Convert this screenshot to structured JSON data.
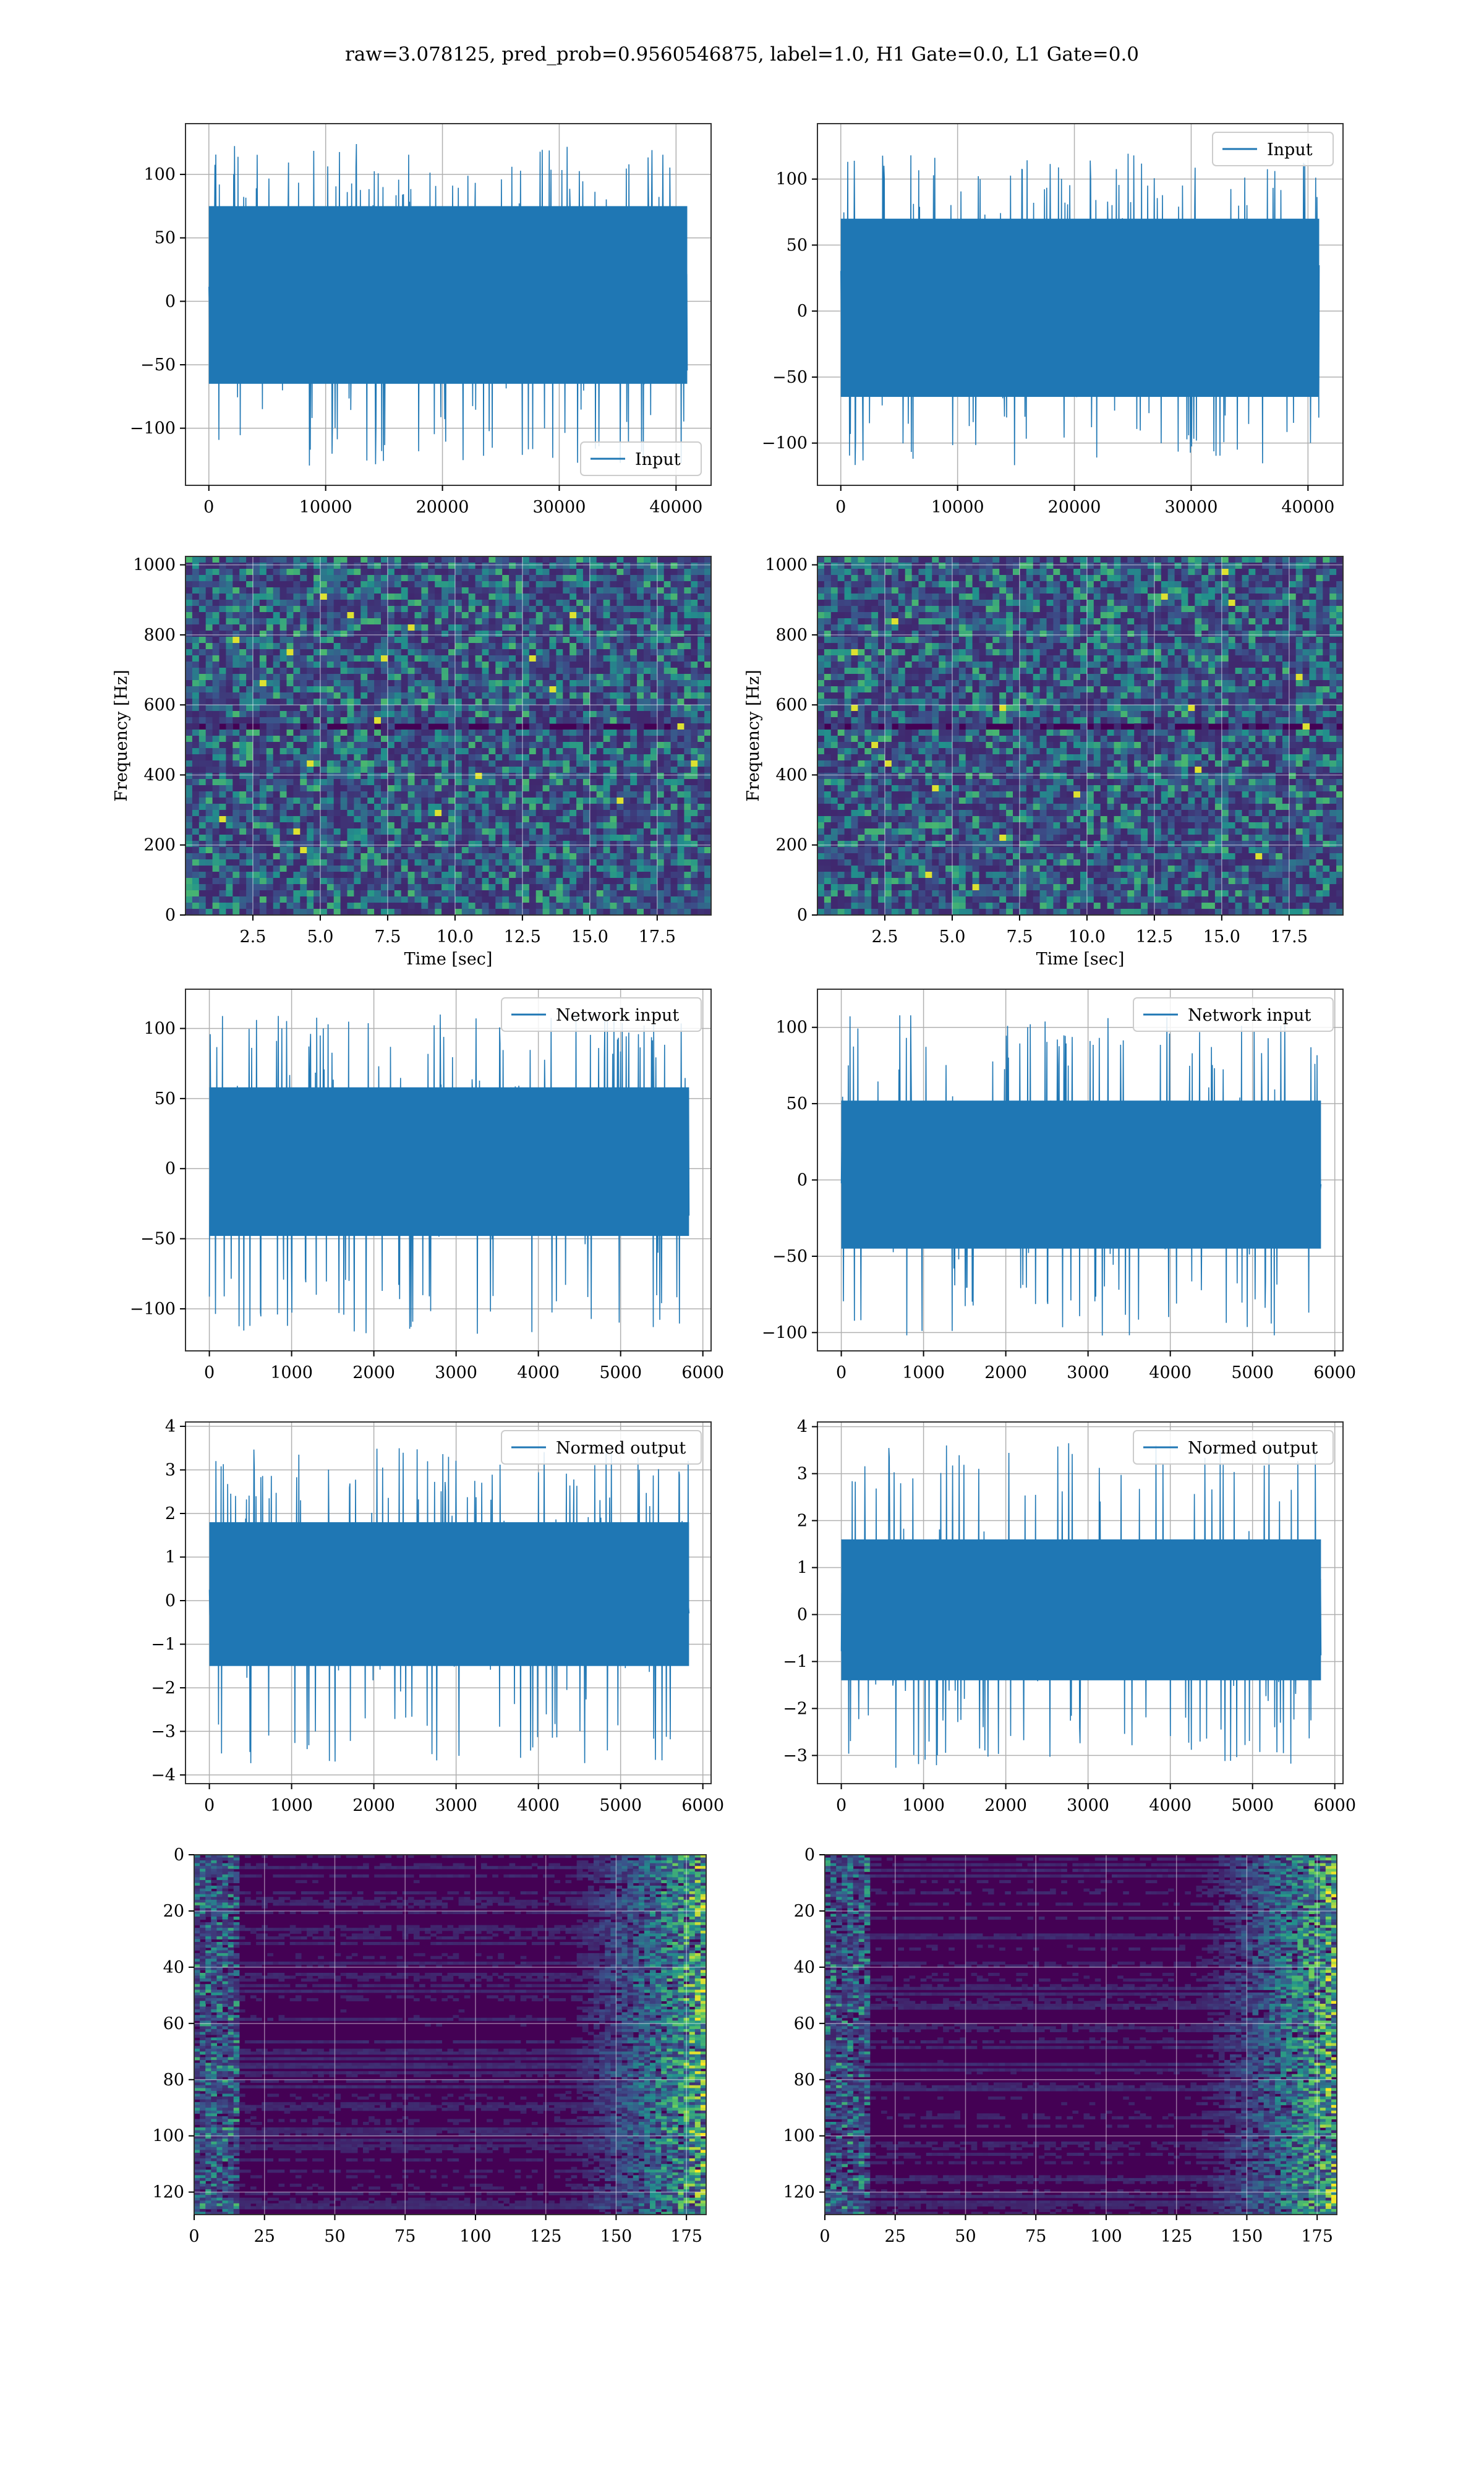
{
  "figure": {
    "suptitle": "raw=3.078125, pred_prob=0.9560546875, label=1.0, H1 Gate=0.0, L1 Gate=0.0",
    "colors": {
      "line": "#1f77b4",
      "grid": "#b0b0b0",
      "viridis_dark": "#440154"
    }
  },
  "chart_data": [
    {
      "id": "r0c0",
      "type": "line",
      "legend": [
        "Input"
      ],
      "legend_loc": "lower-right",
      "xlim": [
        -2000,
        43000
      ],
      "ylim": [
        -145,
        140
      ],
      "x_ticks": [
        0,
        10000,
        20000,
        30000,
        40000
      ],
      "x_tick_labels": [
        "0",
        "10000",
        "20000",
        "30000",
        "40000"
      ],
      "y_ticks": [
        -100,
        -50,
        0,
        50,
        100
      ],
      "y_tick_labels": [
        "−100",
        "−50",
        "0",
        "50",
        "100"
      ],
      "grid": true,
      "xlabel": "",
      "ylabel": "",
      "signal": {
        "n": 40960,
        "x_start": 0,
        "x_end": 40960,
        "envelope_min": -130,
        "envelope_max": 125,
        "body_min": -65,
        "body_max": 75
      }
    },
    {
      "id": "r0c1",
      "type": "line",
      "legend": [
        "Input"
      ],
      "legend_loc": "upper-right",
      "xlim": [
        -2000,
        43000
      ],
      "ylim": [
        -132,
        142
      ],
      "x_ticks": [
        0,
        10000,
        20000,
        30000,
        40000
      ],
      "x_tick_labels": [
        "0",
        "10000",
        "20000",
        "30000",
        "40000"
      ],
      "y_ticks": [
        -100,
        -50,
        0,
        50,
        100
      ],
      "y_tick_labels": [
        "−100",
        "−50",
        "0",
        "50",
        "100"
      ],
      "grid": true,
      "xlabel": "",
      "ylabel": "",
      "signal": {
        "n": 40960,
        "x_start": 0,
        "x_end": 40960,
        "envelope_min": -118,
        "envelope_max": 120,
        "body_min": -65,
        "body_max": 70
      }
    },
    {
      "id": "r1c0",
      "type": "heatmap",
      "colormap": "viridis",
      "xlim": [
        0,
        19.5
      ],
      "ylim": [
        0,
        1024
      ],
      "x_ticks": [
        2.5,
        5.0,
        7.5,
        10.0,
        12.5,
        15.0,
        17.5
      ],
      "x_tick_labels": [
        "2.5",
        "5.0",
        "7.5",
        "10.0",
        "12.5",
        "15.0",
        "17.5"
      ],
      "y_ticks": [
        0,
        200,
        400,
        600,
        800,
        1000
      ],
      "y_tick_labels": [
        "0",
        "200",
        "400",
        "600",
        "800",
        "1000"
      ],
      "grid": true,
      "xlabel": "Time [sec]",
      "ylabel": "Frequency [Hz]"
    },
    {
      "id": "r1c1",
      "type": "heatmap",
      "colormap": "viridis",
      "xlim": [
        0,
        19.5
      ],
      "ylim": [
        0,
        1024
      ],
      "x_ticks": [
        2.5,
        5.0,
        7.5,
        10.0,
        12.5,
        15.0,
        17.5
      ],
      "x_tick_labels": [
        "2.5",
        "5.0",
        "7.5",
        "10.0",
        "12.5",
        "15.0",
        "17.5"
      ],
      "y_ticks": [
        0,
        200,
        400,
        600,
        800,
        1000
      ],
      "y_tick_labels": [
        "0",
        "200",
        "400",
        "600",
        "800",
        "1000"
      ],
      "grid": true,
      "xlabel": "Time [sec]",
      "ylabel": "Frequency [Hz]"
    },
    {
      "id": "r2c0",
      "type": "line",
      "legend": [
        "Network input"
      ],
      "legend_loc": "upper-right",
      "xlim": [
        -290,
        6100
      ],
      "ylim": [
        -130,
        128
      ],
      "x_ticks": [
        0,
        1000,
        2000,
        3000,
        4000,
        5000,
        6000
      ],
      "x_tick_labels": [
        "0",
        "1000",
        "2000",
        "3000",
        "4000",
        "5000",
        "6000"
      ],
      "y_ticks": [
        -100,
        -50,
        0,
        50,
        100
      ],
      "y_tick_labels": [
        "−100",
        "−50",
        "0",
        "50",
        "100"
      ],
      "grid": true,
      "xlabel": "",
      "ylabel": "",
      "signal": {
        "n": 5832,
        "x_start": 0,
        "x_end": 5832,
        "envelope_min": -118,
        "envelope_max": 110,
        "body_min": -48,
        "body_max": 58
      }
    },
    {
      "id": "r2c1",
      "type": "line",
      "legend": [
        "Network input"
      ],
      "legend_loc": "upper-right",
      "xlim": [
        -290,
        6100
      ],
      "ylim": [
        -112,
        125
      ],
      "x_ticks": [
        0,
        1000,
        2000,
        3000,
        4000,
        5000,
        6000
      ],
      "x_tick_labels": [
        "0",
        "1000",
        "2000",
        "3000",
        "4000",
        "5000",
        "6000"
      ],
      "y_ticks": [
        -100,
        -50,
        0,
        50,
        100
      ],
      "y_tick_labels": [
        "−100",
        "−50",
        "0",
        "50",
        "100"
      ],
      "grid": true,
      "xlabel": "",
      "ylabel": "",
      "signal": {
        "n": 5832,
        "x_start": 0,
        "x_end": 5832,
        "envelope_min": -102,
        "envelope_max": 108,
        "body_min": -45,
        "body_max": 52
      }
    },
    {
      "id": "r3c0",
      "type": "line",
      "legend": [
        "Normed output"
      ],
      "legend_loc": "upper-right",
      "xlim": [
        -290,
        6100
      ],
      "ylim": [
        -4.2,
        4.1
      ],
      "x_ticks": [
        0,
        1000,
        2000,
        3000,
        4000,
        5000,
        6000
      ],
      "x_tick_labels": [
        "0",
        "1000",
        "2000",
        "3000",
        "4000",
        "5000",
        "6000"
      ],
      "y_ticks": [
        -4,
        -3,
        -2,
        -1,
        0,
        1,
        2,
        3,
        4
      ],
      "y_tick_labels": [
        "−4",
        "−3",
        "−2",
        "−1",
        "0",
        "1",
        "2",
        "3",
        "4"
      ],
      "grid": true,
      "xlabel": "",
      "ylabel": "",
      "signal": {
        "n": 5832,
        "x_start": 0,
        "x_end": 5832,
        "envelope_min": -3.8,
        "envelope_max": 3.5,
        "body_min": -1.5,
        "body_max": 1.8
      }
    },
    {
      "id": "r3c1",
      "type": "line",
      "legend": [
        "Normed output"
      ],
      "legend_loc": "upper-right",
      "xlim": [
        -290,
        6100
      ],
      "ylim": [
        -3.6,
        4.1
      ],
      "x_ticks": [
        0,
        1000,
        2000,
        3000,
        4000,
        5000,
        6000
      ],
      "x_tick_labels": [
        "0",
        "1000",
        "2000",
        "3000",
        "4000",
        "5000",
        "6000"
      ],
      "y_ticks": [
        -3,
        -2,
        -1,
        0,
        1,
        2,
        3,
        4
      ],
      "y_tick_labels": [
        "−3",
        "−2",
        "−1",
        "0",
        "1",
        "2",
        "3",
        "4"
      ],
      "grid": true,
      "xlabel": "",
      "ylabel": "",
      "signal": {
        "n": 5832,
        "x_start": 0,
        "x_end": 5832,
        "envelope_min": -3.3,
        "envelope_max": 3.7,
        "body_min": -1.4,
        "body_max": 1.6
      }
    },
    {
      "id": "r4c0",
      "type": "heatmap",
      "colormap": "viridis",
      "inverted_y": true,
      "xlim": [
        0,
        182
      ],
      "ylim": [
        0,
        128
      ],
      "x_ticks": [
        0,
        25,
        50,
        75,
        100,
        125,
        150,
        175
      ],
      "x_tick_labels": [
        "0",
        "25",
        "50",
        "75",
        "100",
        "125",
        "150",
        "175"
      ],
      "y_ticks": [
        0,
        20,
        40,
        60,
        80,
        100,
        120
      ],
      "y_tick_labels": [
        "0",
        "20",
        "40",
        "60",
        "80",
        "100",
        "120"
      ],
      "grid": true,
      "xlabel": "",
      "ylabel": ""
    },
    {
      "id": "r4c1",
      "type": "heatmap",
      "colormap": "viridis",
      "inverted_y": true,
      "xlim": [
        0,
        182
      ],
      "ylim": [
        0,
        128
      ],
      "x_ticks": [
        0,
        25,
        50,
        75,
        100,
        125,
        150,
        175
      ],
      "x_tick_labels": [
        "0",
        "25",
        "50",
        "75",
        "100",
        "125",
        "150",
        "175"
      ],
      "y_ticks": [
        0,
        20,
        40,
        60,
        80,
        100,
        120
      ],
      "y_tick_labels": [
        "0",
        "20",
        "40",
        "60",
        "80",
        "100",
        "120"
      ],
      "grid": true,
      "xlabel": "",
      "ylabel": ""
    }
  ]
}
